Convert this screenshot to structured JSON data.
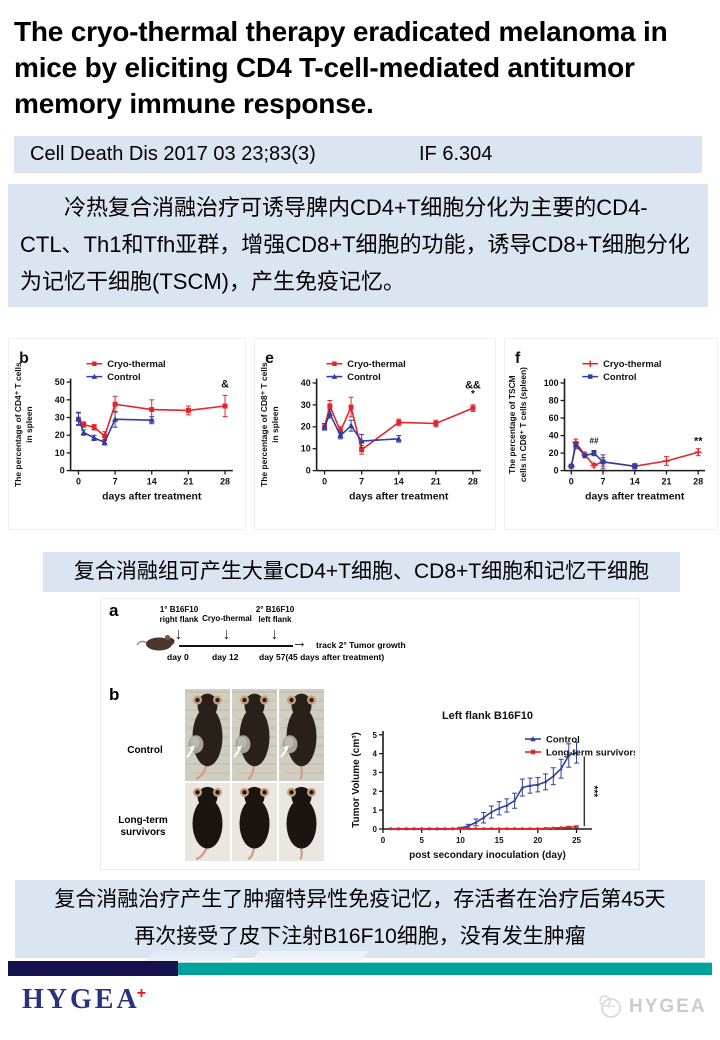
{
  "header": {
    "title": "The cryo-thermal therapy eradicated melanoma in mice by eliciting CD4 T-cell-mediated antitumor memory immune response.",
    "citation": {
      "journal": "Cell Death Dis 2017 03 23;83(3)",
      "impact_factor": "IF 6.304"
    }
  },
  "abstract": {
    "text": "冷热复合消融治疗可诱导脾内CD4+T细胞分化为主要的CD4-CTL、Th1和Tfh亚群，增强CD8+T细胞的功能，诱导CD8+T细胞分化为记忆干细胞(TSCM)，产生免疫记忆。"
  },
  "captions": {
    "charts": "复合消融组可产生大量CD4+T细胞、CD8+T细胞和记忆干细胞",
    "figure_lines": [
      "复合消融治疗产生了肿瘤特异性免疫记忆，存活者在治疗后第45天",
      "再次接受了皮下注射B16F10细胞，没有发生肿瘤"
    ]
  },
  "figure": {
    "panel_a_letter": "a",
    "panel_b_letter": "b",
    "schematic": {
      "arrow1_line1": "1° B16F10",
      "arrow1_line2": "right flank",
      "arrow2_label": "Cryo-thermal",
      "arrow3_line1": "2° B16F10",
      "arrow3_line2": "left flank",
      "day1": "day 0",
      "day2": "day 12",
      "day3": "day 57(45 days after treatment)",
      "arrow_glyph": "↓",
      "track_arrow_glyph": "→",
      "track_label": "track 2° Tumor growth"
    },
    "mice": {
      "cols": 3,
      "rows": [
        {
          "label": "Control",
          "tumor": true,
          "bg": "#d2cdc1",
          "body": "#282019",
          "h": 92,
          "checker": true
        },
        {
          "label": "Long-term survivors",
          "tumor": false,
          "bg": "#e9e7df",
          "body": "#1a1511",
          "h": 78,
          "checker": false
        }
      ]
    }
  },
  "footer": {
    "brand": "HYGEA",
    "brand_plus": "+",
    "watermark": "HYGEA"
  },
  "colors": {
    "accent_bar": "#dbe5f1",
    "series_red": "#e3242b",
    "series_blue": "#2e3f9f",
    "footer_navy": "#15114d",
    "footer_teal": "#01a29a",
    "brand_navy": "#283380",
    "brand_red": "#e8131b",
    "watermark_gray": "#cccccc"
  },
  "chart_data": [
    {
      "id": "cd4-spleen",
      "type": "line",
      "panel_letter": "b",
      "title": "",
      "ylabel_lines": [
        "The percentage of CD4⁺ T cells",
        "in spleen"
      ],
      "xlabel": "days after treatment",
      "ylim": [
        0,
        52
      ],
      "yticks": [
        0,
        10,
        20,
        30,
        40,
        50
      ],
      "xlim": [
        -1.5,
        29.5
      ],
      "xticks": [
        0,
        7,
        14,
        21,
        28
      ],
      "size": [
        238,
        192
      ],
      "margins": {
        "l": 62,
        "r": 12,
        "t": 40,
        "b": 59
      },
      "legend_pos": [
        78,
        25
      ],
      "ylabel_x": 12,
      "legend": [
        {
          "label": "Cryo-thermal",
          "color": "#e3242b",
          "marker": "square"
        },
        {
          "label": "Control",
          "color": "#2e3f9f",
          "marker": "triangle"
        }
      ],
      "series": [
        {
          "name": "Cryo-thermal",
          "color": "#e3242b",
          "marker": "square",
          "x": [
            0,
            1,
            3,
            5,
            7,
            14,
            21,
            28
          ],
          "y": [
            29,
            26,
            24.5,
            19.5,
            37.5,
            34.5,
            34,
            36.5
          ],
          "err": [
            3.5,
            1.5,
            1.5,
            2.5,
            4.5,
            5.5,
            2.5,
            6
          ]
        },
        {
          "name": "Control",
          "color": "#2e3f9f",
          "marker": "triangle",
          "x": [
            0,
            1,
            3,
            5,
            7,
            14
          ],
          "y": [
            29.5,
            21.5,
            18.5,
            16,
            29,
            28.5
          ],
          "err": [
            3.5,
            1.5,
            1.5,
            1.5,
            4.5,
            2
          ]
        }
      ],
      "annotations": [
        {
          "x": 28,
          "y": 47,
          "text": "&",
          "fs": 11
        }
      ]
    },
    {
      "id": "cd8-spleen",
      "type": "line",
      "panel_letter": "e",
      "title": "",
      "ylabel_lines": [
        "The percentage of CD8⁺ T cells",
        "in spleen"
      ],
      "xlabel": "days after treatment",
      "ylim": [
        0,
        42
      ],
      "yticks": [
        0,
        10,
        20,
        30,
        40
      ],
      "xlim": [
        -1.5,
        29.5
      ],
      "xticks": [
        0,
        7,
        14,
        21,
        28
      ],
      "size": [
        242,
        192
      ],
      "margins": {
        "l": 62,
        "r": 14,
        "t": 40,
        "b": 59
      },
      "legend_pos": [
        72,
        25
      ],
      "ylabel_x": 12,
      "legend": [
        {
          "label": "Cryo-thermal",
          "color": "#e3242b",
          "marker": "square"
        },
        {
          "label": "Control",
          "color": "#2e3f9f",
          "marker": "triangle"
        }
      ],
      "series": [
        {
          "name": "Cryo-thermal",
          "color": "#e3242b",
          "marker": "square",
          "x": [
            0,
            1,
            3,
            5,
            7,
            14,
            21,
            28
          ],
          "y": [
            20,
            29.5,
            18,
            29,
            9.5,
            22,
            21.5,
            28.5
          ],
          "err": [
            1.5,
            2.5,
            2,
            4.5,
            2,
            1.5,
            1.5,
            1.5
          ]
        },
        {
          "name": "Control",
          "color": "#2e3f9f",
          "marker": "triangle",
          "x": [
            0,
            1,
            3,
            5,
            7,
            14
          ],
          "y": [
            20,
            26,
            16,
            20.5,
            13.5,
            14.5
          ],
          "err": [
            1.5,
            2,
            1.5,
            2.5,
            3,
            1.5
          ]
        }
      ],
      "annotations": [
        {
          "x": 28,
          "y": 37.5,
          "text": "&&",
          "fs": 11
        },
        {
          "x": 28,
          "y": 33.5,
          "text": "*",
          "fs": 10
        }
      ]
    },
    {
      "id": "tscm-cd8-spleen",
      "type": "line",
      "panel_letter": "f",
      "title": "",
      "ylabel_lines": [
        "The percentage of TSCM",
        "cells in CD8⁺ T cells (spleen)"
      ],
      "xlabel": "days after treatment",
      "ylim": [
        0,
        105
      ],
      "yticks": [
        0,
        20,
        40,
        60,
        80,
        100
      ],
      "xlim": [
        -1.5,
        29.5
      ],
      "xticks": [
        0,
        7,
        14,
        21,
        28
      ],
      "size": [
        214,
        192
      ],
      "margins": {
        "l": 60,
        "r": 12,
        "t": 40,
        "b": 59
      },
      "legend_pos": [
        78,
        25
      ],
      "ylabel_x": 10,
      "legend": [
        {
          "label": "Cryo-thermal",
          "color": "#e3242b",
          "marker": "plus"
        },
        {
          "label": "Control",
          "color": "#2e3f9f",
          "marker": "square"
        }
      ],
      "series": [
        {
          "name": "Cryo-thermal",
          "color": "#e3242b",
          "marker": "plus",
          "x": [
            0,
            1,
            3,
            5,
            7,
            14,
            21,
            28
          ],
          "y": [
            5,
            32,
            18,
            6,
            10,
            5,
            11,
            21
          ],
          "err": [
            2,
            4,
            3,
            2,
            5,
            3,
            5,
            4
          ]
        },
        {
          "name": "Control",
          "color": "#2e3f9f",
          "marker": "square",
          "x": [
            0,
            1,
            3,
            5,
            7,
            14
          ],
          "y": [
            5,
            29,
            17,
            20,
            10,
            5
          ],
          "err": [
            2,
            4,
            2,
            3,
            8,
            2
          ]
        }
      ],
      "annotations": [
        {
          "x": 5,
          "y": 31,
          "text": "##",
          "fs": 8
        },
        {
          "x": 28,
          "y": 30,
          "text": "**",
          "fs": 11
        }
      ]
    },
    {
      "id": "tumor-growth",
      "type": "line",
      "panel_letter": "",
      "title": "Left flank B16F10",
      "ylabel_lines": [
        "Tumor Volume (cm³)"
      ],
      "xlabel": "post secondary inoculation (day)",
      "ylim": [
        0,
        5.2
      ],
      "yticks": [
        0,
        1,
        2,
        3,
        4,
        5
      ],
      "xlim": [
        0,
        27
      ],
      "xticks": [
        0,
        5,
        10,
        15,
        20,
        25
      ],
      "size": [
        288,
        175
      ],
      "margins": {
        "l": 36,
        "r": 43,
        "t": 32,
        "b": 45
      },
      "legend_pos": [
        178,
        40
      ],
      "ylabel_x": 12,
      "tick_fs": 8,
      "label_fs": 10,
      "msize": 2.6,
      "legend": [
        {
          "label": "Control",
          "color": "#2e3f9f",
          "marker": "triangle"
        },
        {
          "label": "Long-term survivors",
          "color": "#e3242b",
          "marker": "square"
        }
      ],
      "series": [
        {
          "name": "Control",
          "color": "#2e3f9f",
          "marker": "triangle",
          "msize": 2.6,
          "x": [
            1,
            2,
            3,
            4,
            5,
            6,
            7,
            8,
            9,
            10,
            11,
            12,
            13,
            14,
            15,
            16,
            17,
            18,
            19,
            20,
            21,
            22,
            23,
            24,
            25
          ],
          "y": [
            0,
            0,
            0,
            0,
            0,
            0,
            0,
            0,
            0,
            0.05,
            0.15,
            0.35,
            0.6,
            0.9,
            1.1,
            1.25,
            1.5,
            2.2,
            2.3,
            2.35,
            2.5,
            2.8,
            3.2,
            3.9,
            4.05
          ],
          "err": [
            0,
            0,
            0,
            0,
            0,
            0,
            0,
            0,
            0,
            0.04,
            0.1,
            0.18,
            0.28,
            0.32,
            0.35,
            0.35,
            0.4,
            0.45,
            0.4,
            0.38,
            0.42,
            0.45,
            0.5,
            0.62,
            0.55
          ]
        },
        {
          "name": "Long-term survivors",
          "color": "#e3242b",
          "marker": "square",
          "msize": 2.6,
          "x": [
            1,
            2,
            3,
            4,
            5,
            6,
            7,
            8,
            9,
            10,
            11,
            12,
            13,
            14,
            15,
            16,
            17,
            18,
            19,
            20,
            21,
            22,
            23,
            24,
            25
          ],
          "y": [
            0.02,
            0.02,
            0.02,
            0.02,
            0.02,
            0.02,
            0.02,
            0.02,
            0.02,
            0.02,
            0.02,
            0.02,
            0.02,
            0.02,
            0.02,
            0.02,
            0.02,
            0.02,
            0.02,
            0.02,
            0.04,
            0.05,
            0.07,
            0.1,
            0.12
          ],
          "err": [
            0,
            0,
            0,
            0,
            0,
            0,
            0,
            0,
            0,
            0,
            0,
            0,
            0,
            0,
            0,
            0,
            0,
            0,
            0,
            0,
            0,
            0,
            0,
            0.04,
            0.05
          ]
        }
      ],
      "lines": [
        {
          "x1": 26,
          "y1": 0.15,
          "x2": 26,
          "y2": 3.85
        }
      ],
      "annotations": [
        {
          "x": 26.9,
          "y": 2.0,
          "text": "***",
          "rotate": 90,
          "fs": 10
        }
      ]
    }
  ]
}
